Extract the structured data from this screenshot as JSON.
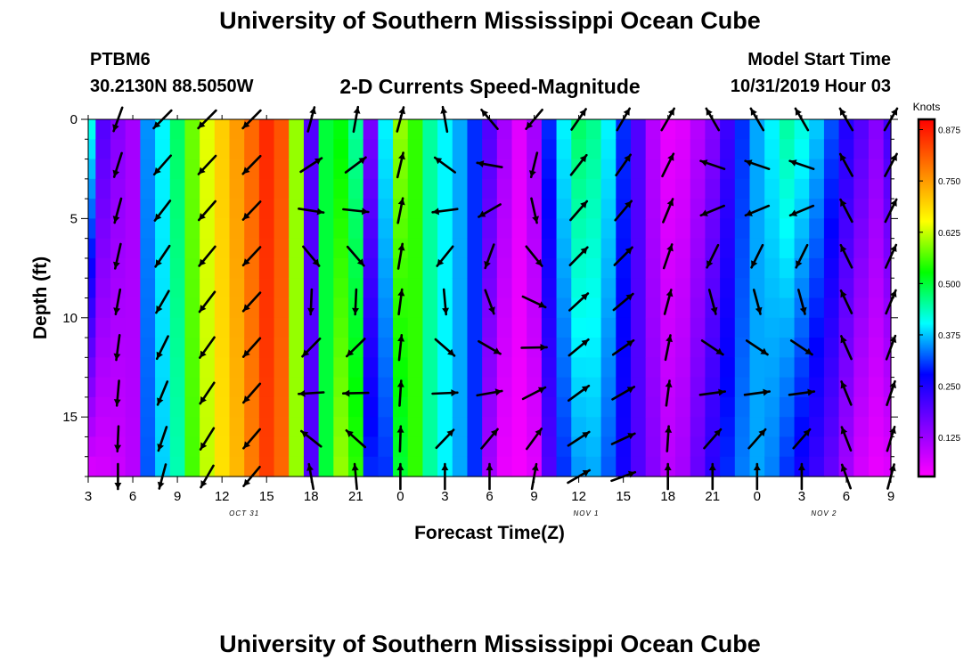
{
  "header": {
    "main_title": "University of Southern Mississippi Ocean Cube",
    "station_id": "PTBM6",
    "station_coords": "30.2130N 88.5050W",
    "plot_title": "2-D Currents Speed-Magnitude",
    "model_start_label": "Model Start Time",
    "model_start_value": "10/31/2019 Hour 03"
  },
  "footer": {
    "title": "University of Southern Mississippi Ocean Cube"
  },
  "chart_data": {
    "type": "heatmap",
    "title": "2-D Currents Speed-Magnitude",
    "xlabel": "Forecast Time(Z)",
    "ylabel": "Depth (ft)",
    "x_ticks": [
      "3",
      "6",
      "9",
      "12",
      "15",
      "18",
      "21",
      "0",
      "3",
      "6",
      "9",
      "12",
      "15",
      "18",
      "21",
      "0",
      "3",
      "6",
      "9"
    ],
    "x_tick_hours": [
      3,
      6,
      9,
      12,
      15,
      18,
      21,
      24,
      27,
      30,
      33,
      36,
      39,
      42,
      45,
      48,
      51,
      54,
      57
    ],
    "date_labels": [
      {
        "text": "OCT 31",
        "hour": 13.5
      },
      {
        "text": "NOV 1",
        "hour": 36.5
      },
      {
        "text": "NOV 2",
        "hour": 52.5
      }
    ],
    "x_range_hours": [
      3,
      57
    ],
    "y_ticks": [
      0,
      5,
      10,
      15
    ],
    "y_range": [
      0,
      18
    ],
    "y_inverted": true,
    "colorbar": {
      "label": "Knots",
      "ticks": [
        "0.875",
        "0.750",
        "0.625",
        "0.500",
        "0.375",
        "0.250",
        "0.125"
      ],
      "tick_values": [
        0.875,
        0.75,
        0.625,
        0.5,
        0.375,
        0.25,
        0.125
      ],
      "range": [
        0.03,
        0.9
      ],
      "colors": [
        "#ff00ff",
        "#8000ff",
        "#0000ff",
        "#00ffff",
        "#00ff00",
        "#ffff00",
        "#ff8000",
        "#ff0000"
      ]
    },
    "speed_profile": {
      "hours": [
        3,
        4,
        5,
        6,
        7,
        8,
        9,
        10,
        11,
        12,
        13,
        14,
        15,
        16,
        17,
        18,
        19,
        20,
        21,
        22,
        23,
        24,
        25,
        26,
        27,
        28,
        29,
        30,
        31,
        32,
        33,
        34,
        35,
        36,
        37,
        38,
        39,
        40,
        41,
        42,
        43,
        44,
        45,
        46,
        47,
        48,
        49,
        50,
        51,
        52,
        53,
        54,
        55,
        56,
        57
      ],
      "surface": [
        0.42,
        0.2,
        0.15,
        0.12,
        0.35,
        0.4,
        0.48,
        0.58,
        0.64,
        0.7,
        0.75,
        0.8,
        0.86,
        0.82,
        0.6,
        0.2,
        0.5,
        0.52,
        0.45,
        0.16,
        0.4,
        0.6,
        0.55,
        0.45,
        0.4,
        0.36,
        0.3,
        0.2,
        0.12,
        0.06,
        0.12,
        0.3,
        0.4,
        0.48,
        0.46,
        0.4,
        0.3,
        0.2,
        0.1,
        0.05,
        0.06,
        0.1,
        0.15,
        0.22,
        0.3,
        0.36,
        0.4,
        0.45,
        0.42,
        0.38,
        0.32,
        0.25,
        0.2,
        0.15,
        0.22
      ],
      "bottom": [
        0.06,
        0.07,
        0.08,
        0.1,
        0.32,
        0.38,
        0.44,
        0.56,
        0.62,
        0.68,
        0.72,
        0.78,
        0.84,
        0.8,
        0.6,
        0.2,
        0.5,
        0.6,
        0.55,
        0.3,
        0.3,
        0.5,
        0.55,
        0.45,
        0.4,
        0.36,
        0.3,
        0.12,
        0.05,
        0.04,
        0.06,
        0.2,
        0.3,
        0.35,
        0.36,
        0.32,
        0.26,
        0.2,
        0.15,
        0.1,
        0.12,
        0.18,
        0.24,
        0.3,
        0.34,
        0.36,
        0.34,
        0.3,
        0.26,
        0.22,
        0.18,
        0.12,
        0.07,
        0.05,
        0.06
      ]
    },
    "vectors": {
      "hours": [
        5,
        8,
        11,
        14,
        18,
        21,
        24,
        27,
        30,
        33,
        36,
        39,
        42,
        45,
        48,
        51,
        54,
        57
      ],
      "depths": [
        0,
        2.3,
        4.6,
        6.9,
        9.2,
        11.5,
        13.8,
        16.1,
        18
      ],
      "surface_deg": [
        200,
        225,
        225,
        225,
        15,
        10,
        15,
        350,
        320,
        220,
        35,
        30,
        30,
        330,
        330,
        330,
        330,
        30
      ],
      "bottom_deg": [
        180,
        195,
        210,
        220,
        350,
        355,
        0,
        0,
        0,
        10,
        60,
        70,
        0,
        0,
        0,
        0,
        340,
        15
      ]
    }
  }
}
